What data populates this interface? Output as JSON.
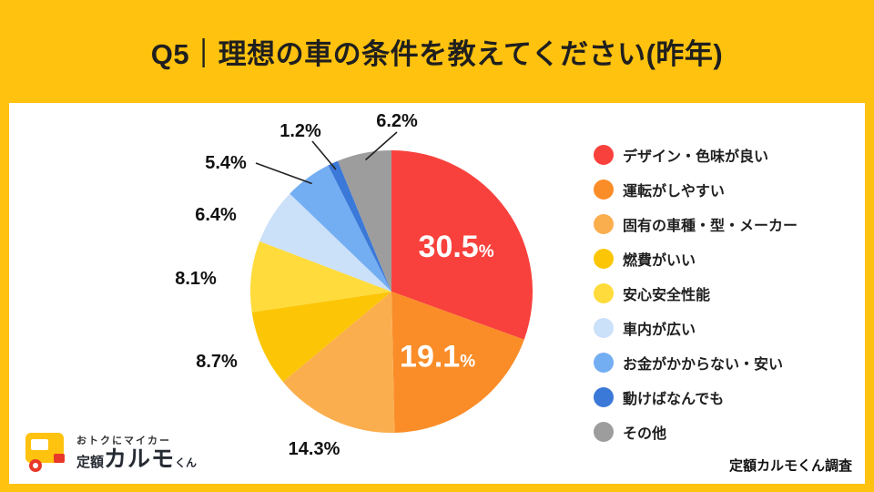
{
  "header": {
    "title": "Q5｜理想の車の条件を教えてください(昨年)"
  },
  "logo": {
    "tagline": "おトクにマイカー",
    "brand_prefix": "定額",
    "brand_main": "カルモ",
    "brand_suffix": "くん"
  },
  "footer": {
    "source": "定額カルモくん調査"
  },
  "colors": {
    "banner": "#FFC20E",
    "panel": "#FFFFFF",
    "title_text": "#1F1F1F",
    "label_text": "#111111",
    "inside_label_text": "#FFFFFF"
  },
  "chart_data": {
    "type": "pie",
    "title": "Q5｜理想の車の条件を教えてください(昨年)",
    "unit": "%",
    "start_angle_deg": 0,
    "direction": "clockwise",
    "legend_position": "right",
    "categories": [
      "デザイン・色味が良い",
      "運転がしやすい",
      "固有の車種・型・メーカー",
      "燃費がいい",
      "安心安全性能",
      "車内が広い",
      "お金がかからない・安い",
      "動けばなんでも",
      "その他"
    ],
    "values": [
      30.5,
      19.1,
      14.3,
      8.7,
      8.1,
      6.4,
      5.4,
      1.2,
      6.2
    ],
    "colors": [
      "#F8413C",
      "#FA8D28",
      "#FBAE4E",
      "#FCC607",
      "#FFDB3B",
      "#CBE0F9",
      "#73AEF3",
      "#3B79D8",
      "#9D9D9D"
    ],
    "inside_labels": [
      0,
      1
    ],
    "leader_line_labels": [
      6,
      7,
      8
    ]
  }
}
